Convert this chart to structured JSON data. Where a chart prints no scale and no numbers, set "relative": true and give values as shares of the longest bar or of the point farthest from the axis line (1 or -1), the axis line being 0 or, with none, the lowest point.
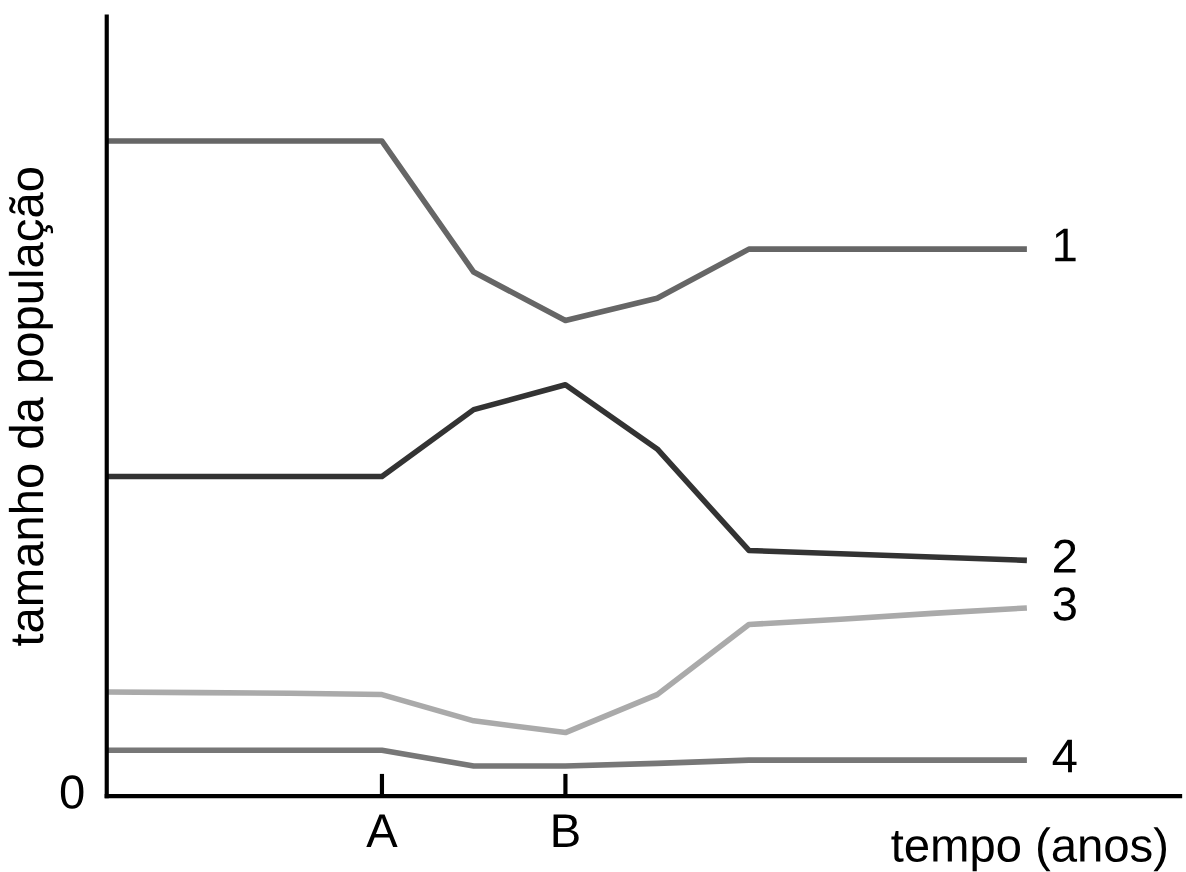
{
  "chart_data": {
    "type": "line",
    "relative": true,
    "xlabel": "tempo (anos)",
    "ylabel": "tamanho da população",
    "annotations": [
      "0"
    ],
    "categories": [
      null,
      null,
      null,
      "A",
      null,
      "B",
      null,
      null,
      null,
      null,
      null
    ],
    "legend": false,
    "marker": "none",
    "line_style": "solid",
    "series": [
      {
        "name": "1",
        "color": "#666666",
        "values": [
          1.0,
          1.0,
          1.0,
          1.0,
          0.8,
          0.726,
          0.76,
          0.835,
          0.835,
          0.835,
          0.835
        ]
      },
      {
        "name": "2",
        "color": "#333333",
        "values": [
          0.488,
          0.488,
          0.488,
          0.488,
          0.59,
          0.628,
          0.53,
          0.375,
          0.37,
          0.365,
          0.36
        ]
      },
      {
        "name": "3",
        "color": "#aaaaaa",
        "values": [
          0.159,
          0.158,
          0.157,
          0.155,
          0.115,
          0.097,
          0.155,
          0.262,
          0.27,
          0.279,
          0.287
        ]
      },
      {
        "name": "4",
        "color": "#777777",
        "values": [
          0.07,
          0.07,
          0.07,
          0.07,
          0.046,
          0.046,
          0.05,
          0.055,
          0.055,
          0.055,
          0.055
        ]
      }
    ]
  }
}
